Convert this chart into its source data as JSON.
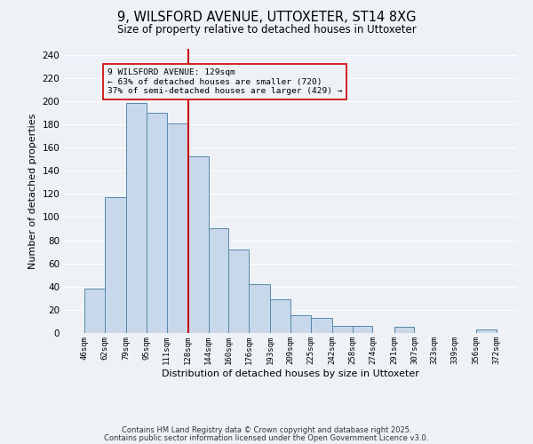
{
  "title_line1": "9, WILSFORD AVENUE, UTTOXETER, ST14 8XG",
  "title_line2": "Size of property relative to detached houses in Uttoxeter",
  "xlabel": "Distribution of detached houses by size in Uttoxeter",
  "ylabel": "Number of detached properties",
  "bar_left_edges": [
    46,
    62,
    79,
    95,
    111,
    128,
    144,
    160,
    176,
    193,
    209,
    225,
    242,
    258,
    274,
    291,
    307,
    323,
    339,
    356
  ],
  "bar_widths": [
    16,
    17,
    16,
    16,
    17,
    16,
    16,
    16,
    17,
    16,
    16,
    17,
    16,
    16,
    16,
    16,
    16,
    16,
    17,
    16
  ],
  "bar_heights": [
    38,
    117,
    198,
    190,
    181,
    152,
    90,
    72,
    42,
    29,
    15,
    13,
    6,
    6,
    0,
    5,
    0,
    0,
    0,
    3
  ],
  "tick_labels": [
    "46sqm",
    "62sqm",
    "79sqm",
    "95sqm",
    "111sqm",
    "128sqm",
    "144sqm",
    "160sqm",
    "176sqm",
    "193sqm",
    "209sqm",
    "225sqm",
    "242sqm",
    "258sqm",
    "274sqm",
    "291sqm",
    "307sqm",
    "323sqm",
    "339sqm",
    "356sqm",
    "372sqm"
  ],
  "tick_positions": [
    46,
    62,
    79,
    95,
    111,
    128,
    144,
    160,
    176,
    193,
    209,
    225,
    242,
    258,
    274,
    291,
    307,
    323,
    339,
    356,
    372
  ],
  "bar_color": "#c8d8ea",
  "bar_edge_color": "#5588aa",
  "vline_x": 128,
  "vline_color": "#cc0000",
  "annotation_text_line1": "9 WILSFORD AVENUE: 129sqm",
  "annotation_text_line2": "← 63% of detached houses are smaller (720)",
  "annotation_text_line3": "37% of semi-detached houses are larger (429) →",
  "ylim": [
    0,
    245
  ],
  "yticks": [
    0,
    20,
    40,
    60,
    80,
    100,
    120,
    140,
    160,
    180,
    200,
    220,
    240
  ],
  "footer_line1": "Contains HM Land Registry data © Crown copyright and database right 2025.",
  "footer_line2": "Contains public sector information licensed under the Open Government Licence v3.0.",
  "background_color": "#eef2f7",
  "grid_color": "#ffffff"
}
